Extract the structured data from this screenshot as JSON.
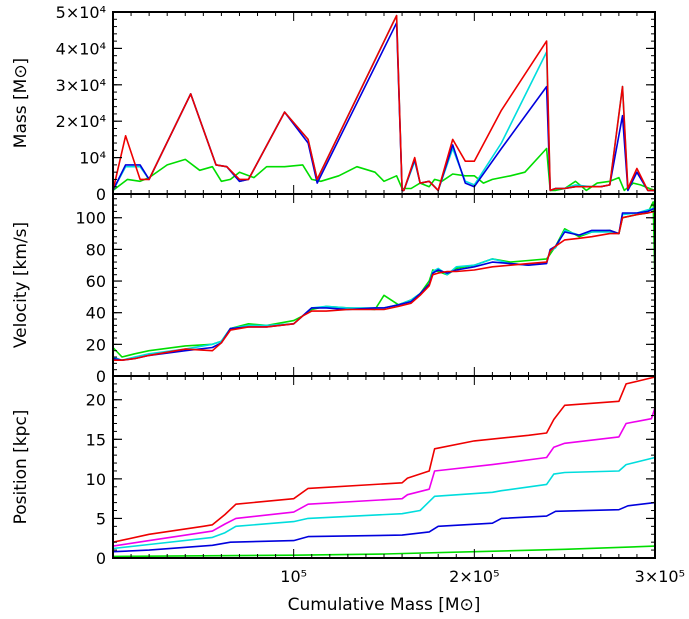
{
  "chart_data": [
    {
      "type": "line",
      "panel": "top",
      "ylabel": "Mass [M⊙]",
      "xlim": [
        0,
        300000
      ],
      "ylim": [
        0,
        50000
      ],
      "yticks": [
        {
          "value": 0,
          "label": "0"
        },
        {
          "value": 10000,
          "label": "10⁴"
        },
        {
          "value": 20000,
          "label": "2×10⁴"
        },
        {
          "value": 30000,
          "label": "3×10⁴"
        },
        {
          "value": 40000,
          "label": "4×10⁴"
        },
        {
          "value": 50000,
          "label": "5×10⁴"
        }
      ],
      "series": [
        {
          "color": "#00dd00",
          "x": [
            0,
            8000,
            15000,
            20000,
            30000,
            40000,
            48000,
            55000,
            60000,
            65000,
            70000,
            78000,
            85000,
            95000,
            105000,
            110000,
            115000,
            125000,
            135000,
            145000,
            150000,
            157000,
            160000,
            165000,
            170000,
            175000,
            178000,
            182000,
            188000,
            195000,
            200000,
            205000,
            210000,
            220000,
            228000,
            240000,
            242000,
            245000,
            250000,
            256000,
            262000,
            268000,
            275000,
            280000,
            283000,
            288000,
            292000,
            297000,
            300000
          ],
          "y": [
            1000,
            4000,
            3500,
            4500,
            8000,
            9500,
            6500,
            7500,
            3500,
            4000,
            6000,
            4500,
            7500,
            7500,
            8000,
            4000,
            3500,
            5000,
            7500,
            6000,
            3500,
            5000,
            1500,
            1500,
            3000,
            2000,
            4000,
            3500,
            5500,
            5000,
            5000,
            3000,
            4000,
            5000,
            6000,
            12500,
            1000,
            1000,
            1500,
            3500,
            1000,
            3000,
            3500,
            4500,
            1000,
            3000,
            2500,
            1500,
            1000
          ]
        },
        {
          "color": "#00dddd",
          "x": [
            0,
            7000,
            15000,
            20000,
            43000,
            57000,
            63000,
            70000,
            75000,
            95000,
            108000,
            113000,
            155000,
            157000,
            160000,
            161000,
            167000,
            170000,
            175000,
            180000,
            188000,
            195000,
            200000,
            215000,
            240000,
            242000,
            245000,
            250000,
            256000,
            264000,
            270000,
            275000,
            282000,
            285000,
            290000,
            296000,
            300000
          ],
          "y": [
            1000,
            7500,
            7500,
            4000,
            27500,
            8000,
            7500,
            3500,
            4000,
            22500,
            15000,
            4000,
            47000,
            49000,
            1000,
            1000,
            9000,
            3000,
            3500,
            1000,
            12500,
            3500,
            2500,
            14000,
            39000,
            1000,
            1500,
            1500,
            2500,
            2000,
            2000,
            2500,
            29500,
            1000,
            6000,
            1000,
            1000
          ]
        },
        {
          "color": "#0000dd",
          "x": [
            0,
            7000,
            15000,
            20000,
            43000,
            57000,
            63000,
            70000,
            75000,
            95000,
            108000,
            113000,
            155000,
            157000,
            160000,
            161000,
            167000,
            170000,
            175000,
            180000,
            188000,
            195000,
            200000,
            215000,
            240000,
            242000,
            245000,
            250000,
            256000,
            264000,
            270000,
            275000,
            282000,
            285000,
            290000,
            296000,
            300000
          ],
          "y": [
            1000,
            8000,
            8000,
            4000,
            27500,
            8000,
            7500,
            3500,
            4000,
            22500,
            14000,
            3000,
            45000,
            47000,
            1000,
            1000,
            9500,
            3000,
            3500,
            1000,
            13500,
            3000,
            2000,
            12500,
            29500,
            1000,
            1500,
            1500,
            2000,
            2000,
            2000,
            2500,
            21500,
            1000,
            6000,
            1000,
            1000
          ]
        },
        {
          "color": "#ee0000",
          "x": [
            0,
            7000,
            15000,
            20000,
            43000,
            57000,
            63000,
            70000,
            75000,
            95000,
            108000,
            113000,
            155000,
            157000,
            160000,
            161000,
            167000,
            170000,
            175000,
            180000,
            188000,
            195000,
            200000,
            215000,
            240000,
            242000,
            245000,
            250000,
            256000,
            264000,
            270000,
            275000,
            282000,
            285000,
            290000,
            296000,
            300000
          ],
          "y": [
            1000,
            16000,
            4000,
            4000,
            27500,
            8000,
            7500,
            4000,
            4000,
            22500,
            15000,
            4000,
            47000,
            49000,
            1000,
            1000,
            10000,
            3000,
            3500,
            1000,
            15000,
            9000,
            9000,
            23000,
            42000,
            1000,
            1500,
            1500,
            2000,
            2000,
            2000,
            2500,
            29500,
            1500,
            7000,
            1000,
            1000
          ]
        }
      ]
    },
    {
      "type": "line",
      "panel": "middle",
      "ylabel": "Velocity [km/s]",
      "xlim": [
        0,
        300000
      ],
      "ylim": [
        0,
        115
      ],
      "yticks": [
        {
          "value": 0,
          "label": "0"
        },
        {
          "value": 20,
          "label": "20"
        },
        {
          "value": 40,
          "label": "40"
        },
        {
          "value": 60,
          "label": "60"
        },
        {
          "value": 80,
          "label": "80"
        },
        {
          "value": 100,
          "label": "100"
        }
      ],
      "series": [
        {
          "color": "#00dd00",
          "x": [
            0,
            5000,
            12000,
            20000,
            40000,
            55000,
            60000,
            65000,
            75000,
            85000,
            100000,
            105000,
            110000,
            118000,
            130000,
            145000,
            150000,
            158000,
            165000,
            170000,
            175000,
            177000,
            180000,
            185000,
            190000,
            200000,
            210000,
            220000,
            230000,
            240000,
            242000,
            245000,
            250000,
            258000,
            265000,
            275000,
            280000,
            282000,
            290000,
            296000,
            299000,
            300000
          ],
          "y": [
            18,
            12,
            14,
            16,
            19,
            20,
            22,
            30,
            33,
            32,
            35,
            38,
            42,
            44,
            43,
            42,
            51,
            45,
            48,
            52,
            60,
            67,
            66,
            64,
            68,
            70,
            74,
            72,
            73,
            74,
            77,
            82,
            93,
            88,
            91,
            92,
            90,
            100,
            102,
            103,
            110,
            58
          ]
        },
        {
          "color": "#00dddd",
          "x": [
            0,
            5000,
            12000,
            20000,
            40000,
            55000,
            60000,
            65000,
            75000,
            85000,
            100000,
            105000,
            110000,
            118000,
            130000,
            145000,
            150000,
            158000,
            165000,
            170000,
            175000,
            177000,
            180000,
            185000,
            190000,
            200000,
            210000,
            220000,
            230000,
            240000,
            242000,
            245000,
            250000,
            258000,
            265000,
            275000,
            280000,
            282000,
            290000,
            296000,
            300000
          ],
          "y": [
            12,
            10,
            12,
            14,
            17,
            20,
            22,
            30,
            32,
            32,
            33,
            38,
            43,
            44,
            43,
            43,
            43,
            45,
            48,
            52,
            58,
            66,
            68,
            64,
            69,
            70,
            74,
            71,
            70,
            72,
            79,
            81,
            92,
            89,
            91,
            91,
            90,
            102,
            103,
            105,
            106
          ]
        },
        {
          "color": "#0000dd",
          "x": [
            0,
            5000,
            12000,
            20000,
            40000,
            55000,
            60000,
            65000,
            75000,
            85000,
            100000,
            105000,
            110000,
            118000,
            130000,
            145000,
            150000,
            158000,
            165000,
            170000,
            175000,
            177000,
            180000,
            185000,
            190000,
            200000,
            210000,
            220000,
            230000,
            240000,
            242000,
            245000,
            250000,
            258000,
            265000,
            275000,
            280000,
            282000,
            290000,
            296000,
            300000
          ],
          "y": [
            11,
            10,
            11,
            13,
            16,
            18,
            21,
            30,
            31,
            31,
            33,
            38,
            43,
            43,
            42,
            43,
            43,
            45,
            47,
            52,
            58,
            65,
            67,
            65,
            67,
            69,
            72,
            71,
            70,
            71,
            80,
            82,
            91,
            89,
            92,
            92,
            90,
            103,
            103,
            104,
            106
          ]
        },
        {
          "color": "#ee0000",
          "x": [
            0,
            5000,
            12000,
            20000,
            40000,
            55000,
            60000,
            65000,
            75000,
            85000,
            100000,
            105000,
            110000,
            118000,
            130000,
            145000,
            150000,
            158000,
            165000,
            170000,
            175000,
            177000,
            180000,
            185000,
            190000,
            200000,
            210000,
            220000,
            230000,
            240000,
            242000,
            245000,
            250000,
            258000,
            265000,
            275000,
            280000,
            282000,
            290000,
            296000,
            300000
          ],
          "y": [
            10,
            10,
            11,
            13,
            17,
            16,
            21,
            29,
            31,
            31,
            33,
            38,
            41,
            41,
            42,
            42,
            42,
            44,
            46,
            51,
            57,
            64,
            65,
            66,
            66,
            67,
            69,
            70,
            71,
            72,
            79,
            82,
            86,
            87,
            88,
            90,
            90,
            100,
            102,
            103,
            104
          ]
        }
      ]
    },
    {
      "type": "line",
      "panel": "bottom",
      "ylabel": "Position [kpc]",
      "xlabel": "Cumulative Mass [M⊙]",
      "xlim": [
        0,
        300000
      ],
      "ylim": [
        0,
        23
      ],
      "xticks": [
        {
          "value": 100000,
          "label": "10⁵"
        },
        {
          "value": 200000,
          "label": "2×10⁵"
        },
        {
          "value": 300000,
          "label": "3×10⁵"
        }
      ],
      "yticks": [
        {
          "value": 0,
          "label": "0"
        },
        {
          "value": 5,
          "label": "5"
        },
        {
          "value": 10,
          "label": "10"
        },
        {
          "value": 15,
          "label": "15"
        },
        {
          "value": 20,
          "label": "20"
        }
      ],
      "series": [
        {
          "color": "#00dd00",
          "x": [
            0,
            100000,
            150000,
            200000,
            250000,
            300000
          ],
          "y": [
            0.2,
            0.35,
            0.5,
            0.8,
            1.1,
            1.5
          ]
        },
        {
          "color": "#0000dd",
          "x": [
            0,
            20000,
            55000,
            65000,
            100000,
            108000,
            160000,
            175000,
            180000,
            210000,
            215000,
            240000,
            245000,
            280000,
            285000,
            300000
          ],
          "y": [
            0.8,
            1.0,
            1.6,
            2.0,
            2.2,
            2.7,
            2.9,
            3.3,
            4.0,
            4.4,
            5.0,
            5.3,
            5.9,
            6.1,
            6.6,
            7.0
          ]
        },
        {
          "color": "#00dddd",
          "x": [
            0,
            20000,
            55000,
            62000,
            68000,
            100000,
            108000,
            160000,
            170000,
            178000,
            210000,
            215000,
            240000,
            244000,
            250000,
            280000,
            284000,
            300000
          ],
          "y": [
            1.2,
            1.7,
            2.6,
            3.2,
            4.0,
            4.6,
            5.0,
            5.6,
            6.0,
            7.8,
            8.3,
            8.5,
            9.3,
            10.6,
            10.8,
            11.0,
            11.8,
            12.7
          ]
        },
        {
          "color": "#ee00ee",
          "x": [
            0,
            20000,
            55000,
            62000,
            68000,
            100000,
            108000,
            160000,
            163000,
            175000,
            178000,
            210000,
            240000,
            244000,
            250000,
            280000,
            284000,
            298000,
            300000
          ],
          "y": [
            1.5,
            2.2,
            3.4,
            4.3,
            5.0,
            5.8,
            6.8,
            7.5,
            8.0,
            8.7,
            11.0,
            11.8,
            12.7,
            14.0,
            14.5,
            15.3,
            17.0,
            17.6,
            19.0
          ]
        },
        {
          "color": "#ee0000",
          "x": [
            0,
            20000,
            50000,
            55000,
            62000,
            68000,
            100000,
            108000,
            160000,
            163000,
            175000,
            178000,
            200000,
            230000,
            240000,
            244000,
            250000,
            280000,
            284000,
            300000
          ],
          "y": [
            2.0,
            3.0,
            4.0,
            4.2,
            5.5,
            6.8,
            7.5,
            8.8,
            9.5,
            10.1,
            11.0,
            13.8,
            14.8,
            15.5,
            15.8,
            17.5,
            19.3,
            19.8,
            22.0,
            23.0
          ]
        }
      ]
    }
  ]
}
